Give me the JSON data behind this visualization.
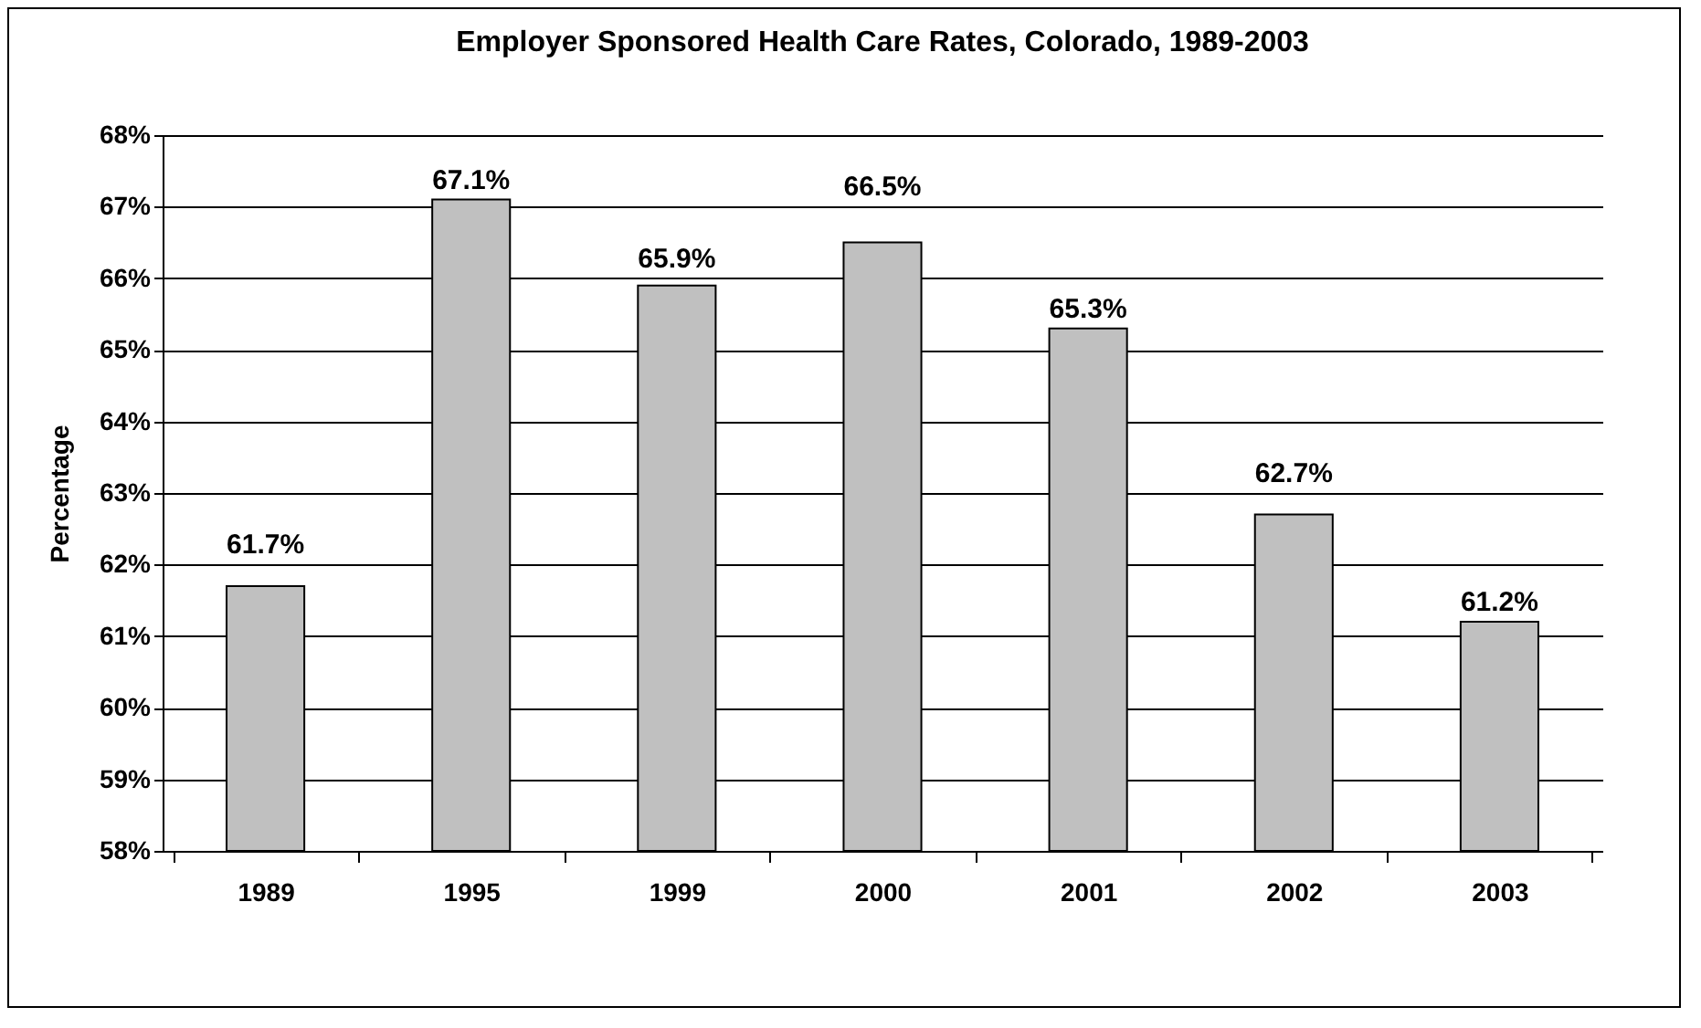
{
  "chart_data": {
    "type": "bar",
    "title": "Employer Sponsored Health Care Rates, Colorado, 1989-2003",
    "ylabel": "Percentage",
    "categories": [
      "1989",
      "1995",
      "1999",
      "2000",
      "2001",
      "2002",
      "2003"
    ],
    "values": [
      61.7,
      67.1,
      65.9,
      66.5,
      65.3,
      62.7,
      61.2
    ],
    "value_labels": [
      "61.7%",
      "67.1%",
      "65.9%",
      "66.5%",
      "65.3%",
      "62.7%",
      "61.2%"
    ],
    "color": "#c0c0c0",
    "ylim": [
      58,
      68
    ],
    "yticks": [
      {
        "value": 58,
        "label": "58%"
      },
      {
        "value": 59,
        "label": "59%"
      },
      {
        "value": 60,
        "label": "60%"
      },
      {
        "value": 61,
        "label": "61%"
      },
      {
        "value": 62,
        "label": "62%"
      },
      {
        "value": 63,
        "label": "63%"
      },
      {
        "value": 64,
        "label": "64%"
      },
      {
        "value": 65,
        "label": "65%"
      },
      {
        "value": 66,
        "label": "66%"
      },
      {
        "value": 67,
        "label": "67%"
      },
      {
        "value": 68,
        "label": "68%"
      }
    ],
    "grid": "y"
  }
}
